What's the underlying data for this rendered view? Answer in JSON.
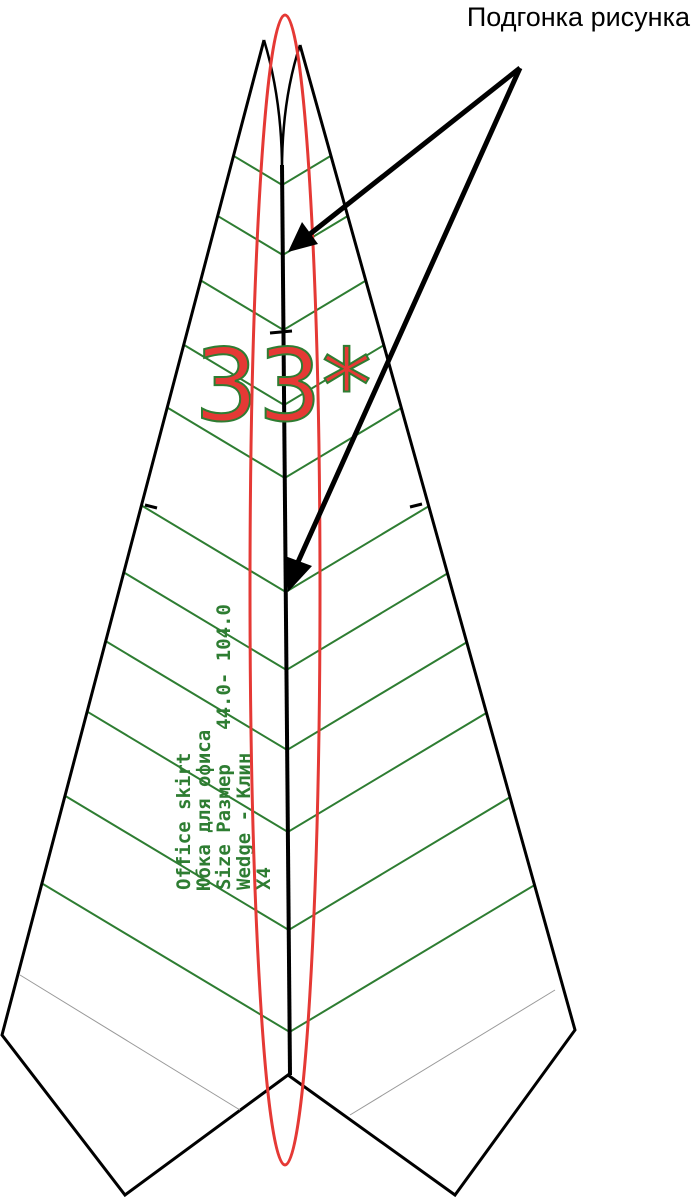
{
  "annotation": "Подгонка рисунка",
  "mark": "33*",
  "label_lines": [
    "Office skirt",
    "Юбка для офиса",
    "Size Размер   44.0- 104.0",
    "Wedge - Клин",
    "X4"
  ]
}
